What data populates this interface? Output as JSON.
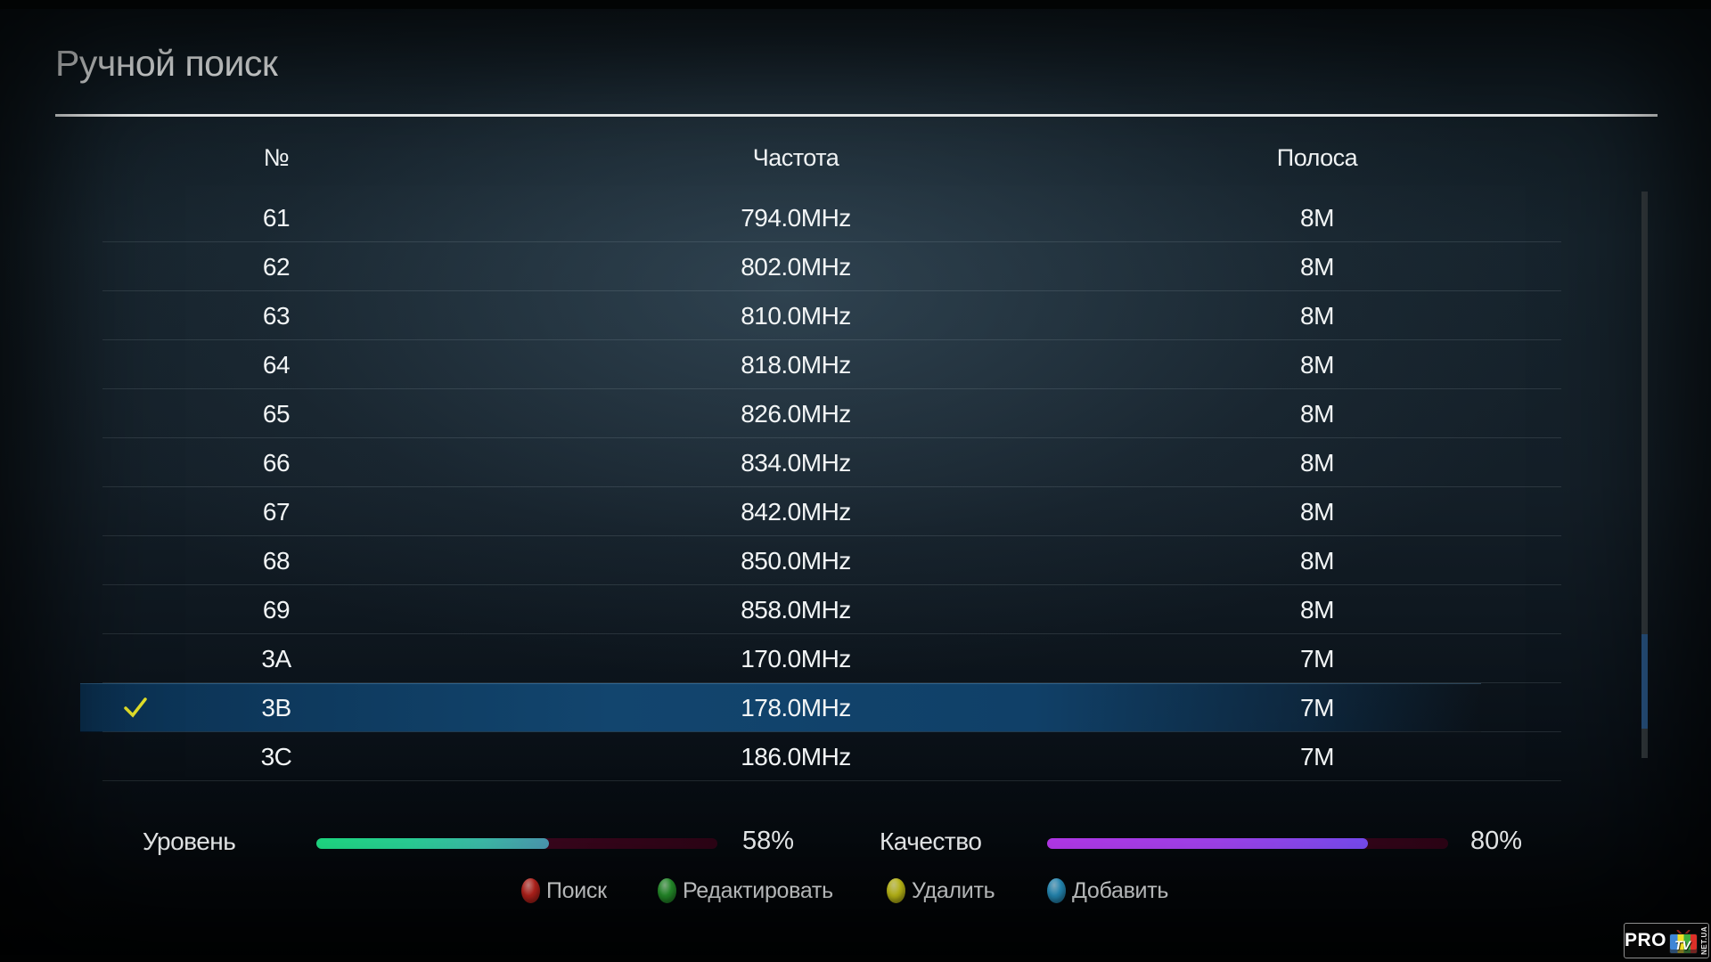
{
  "title": "Ручной поиск",
  "table": {
    "columns": [
      "№",
      "Частота",
      "Полоса"
    ],
    "rows": [
      {
        "num": "61",
        "freq": "794.0MHz",
        "band": "8M",
        "selected": false
      },
      {
        "num": "62",
        "freq": "802.0MHz",
        "band": "8M",
        "selected": false
      },
      {
        "num": "63",
        "freq": "810.0MHz",
        "band": "8M",
        "selected": false
      },
      {
        "num": "64",
        "freq": "818.0MHz",
        "band": "8M",
        "selected": false
      },
      {
        "num": "65",
        "freq": "826.0MHz",
        "band": "8M",
        "selected": false
      },
      {
        "num": "66",
        "freq": "834.0MHz",
        "band": "8M",
        "selected": false
      },
      {
        "num": "67",
        "freq": "842.0MHz",
        "band": "8M",
        "selected": false
      },
      {
        "num": "68",
        "freq": "850.0MHz",
        "band": "8M",
        "selected": false
      },
      {
        "num": "69",
        "freq": "858.0MHz",
        "band": "8M",
        "selected": false
      },
      {
        "num": "3A",
        "freq": "170.0MHz",
        "band": "7M",
        "selected": false
      },
      {
        "num": "3B",
        "freq": "178.0MHz",
        "band": "7M",
        "selected": true
      },
      {
        "num": "3C",
        "freq": "186.0MHz",
        "band": "7M",
        "selected": false
      }
    ]
  },
  "meters": {
    "level": {
      "label": "Уровень",
      "value": 58,
      "value_label": "58%"
    },
    "quality": {
      "label": "Качество",
      "value": 80,
      "value_label": "80%"
    }
  },
  "legend": [
    {
      "key": "red",
      "color": "#e62b23",
      "label": "Поиск"
    },
    {
      "key": "green",
      "color": "#2eb335",
      "label": "Редактировать"
    },
    {
      "key": "yellow",
      "color": "#f0ed1c",
      "label": "Удалить"
    },
    {
      "key": "blue",
      "color": "#2fb0e8",
      "label": "Добавить"
    }
  ],
  "colors": {
    "selected_row": "#12456e",
    "checkmark": "#e6e32a",
    "scroll_thumb": "#2e6095",
    "level_fill_start": "#1fe287",
    "level_fill_end": "#4f9fb9",
    "quality_fill_start": "#bb3af4",
    "quality_fill_end": "#7c4efb",
    "meter_track": "#3a061d"
  },
  "logo": {
    "pro": "PRO",
    "tv": "TV",
    "suffix": "NET.UA"
  }
}
